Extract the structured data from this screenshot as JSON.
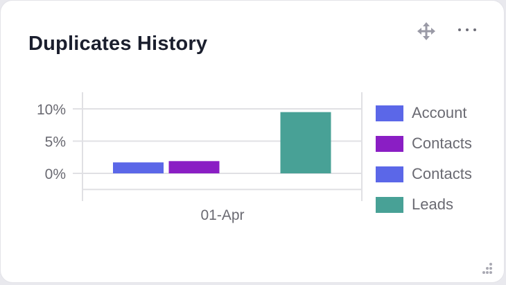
{
  "widget": {
    "title": "Duplicates History",
    "icons": {
      "move": "move-arrows-icon",
      "more": "more-horizontal-icon",
      "resize": "resize-grip-icon"
    }
  },
  "chart_data": {
    "type": "bar",
    "categories": [
      "01-Apr"
    ],
    "series": [
      {
        "name": "Account",
        "color": "#5b67e8",
        "values": [
          1.7
        ]
      },
      {
        "name": "Contacts",
        "color": "#8a1ec4",
        "values": [
          1.9
        ]
      },
      {
        "name": "Contacts",
        "color": "#5b67e8",
        "values": [
          0
        ]
      },
      {
        "name": "Leads",
        "color": "#48a196",
        "values": [
          9.5
        ]
      }
    ],
    "yticks": [
      {
        "value": 0,
        "label": "0%"
      },
      {
        "value": 5,
        "label": "5%"
      },
      {
        "value": 10,
        "label": "10%"
      }
    ],
    "ylim": [
      -2.5,
      12.5
    ],
    "grid": true,
    "legend_position": "right",
    "title": "",
    "xlabel": "",
    "ylabel": ""
  }
}
